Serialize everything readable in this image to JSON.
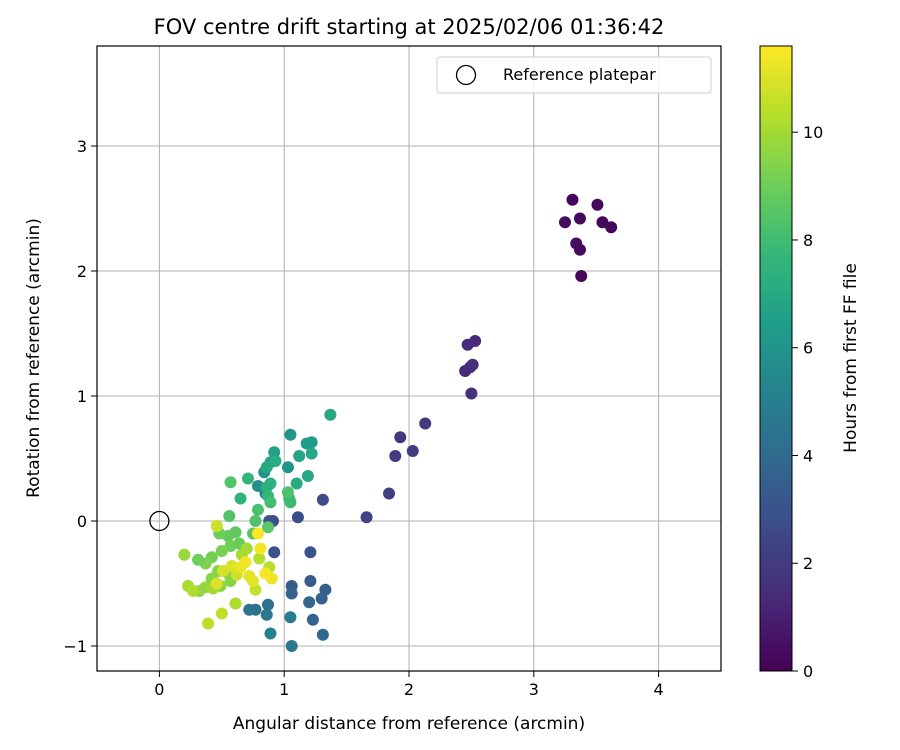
{
  "chart_data": {
    "type": "scatter",
    "title": "FOV centre drift starting at 2025/02/06 01:36:42",
    "xlabel": "Angular distance from reference (arcmin)",
    "ylabel": "Rotation from reference (arcmin)",
    "xlim": [
      -0.5,
      4.5
    ],
    "ylim": [
      -1.2,
      3.8
    ],
    "x_ticks": [
      0,
      1,
      2,
      3,
      4
    ],
    "x_tick_labels": [
      "0",
      "1",
      "2",
      "3",
      "4"
    ],
    "y_ticks": [
      -1,
      0,
      1,
      2,
      3
    ],
    "y_tick_labels": [
      "−1",
      "0",
      "1",
      "2",
      "3"
    ],
    "grid": true,
    "legend": {
      "placement": "top-right",
      "entries": [
        {
          "label": "Reference platepar",
          "marker": "open-circle"
        }
      ]
    },
    "reference_point": {
      "x": 0,
      "y": 0,
      "label": "Reference platepar"
    },
    "colorbar": {
      "label": "Hours from first FF file",
      "range": [
        0,
        11.6
      ],
      "ticks": [
        0,
        2,
        4,
        6,
        8,
        10
      ],
      "tick_labels": [
        "0",
        "2",
        "4",
        "6",
        "8",
        "10"
      ],
      "colormap": "viridis",
      "stops": [
        "#440154",
        "#482878",
        "#3e4989",
        "#31688e",
        "#26828e",
        "#1f9e89",
        "#35b779",
        "#6ece58",
        "#b5de2b",
        "#fde725"
      ]
    },
    "series": [
      {
        "points": [
          {
            "x": 3.31,
            "y": 2.57,
            "c": 0.2
          },
          {
            "x": 3.51,
            "y": 2.53,
            "c": 0.3
          },
          {
            "x": 3.37,
            "y": 2.42,
            "c": 0.3
          },
          {
            "x": 3.25,
            "y": 2.39,
            "c": 0.4
          },
          {
            "x": 3.55,
            "y": 2.39,
            "c": 0.2
          },
          {
            "x": 3.62,
            "y": 2.35,
            "c": 0.3
          },
          {
            "x": 3.34,
            "y": 2.22,
            "c": 0.4
          },
          {
            "x": 3.37,
            "y": 2.17,
            "c": 0.3
          },
          {
            "x": 3.38,
            "y": 1.96,
            "c": 0.2
          },
          {
            "x": 2.53,
            "y": 1.44,
            "c": 1.4
          },
          {
            "x": 2.47,
            "y": 1.41,
            "c": 1.5
          },
          {
            "x": 2.51,
            "y": 1.25,
            "c": 1.5
          },
          {
            "x": 2.49,
            "y": 1.23,
            "c": 1.6
          },
          {
            "x": 2.45,
            "y": 1.2,
            "c": 1.5
          },
          {
            "x": 2.5,
            "y": 1.02,
            "c": 1.6
          },
          {
            "x": 2.13,
            "y": 0.78,
            "c": 2.0
          },
          {
            "x": 1.93,
            "y": 0.67,
            "c": 2.0
          },
          {
            "x": 2.03,
            "y": 0.56,
            "c": 2.1
          },
          {
            "x": 1.89,
            "y": 0.52,
            "c": 2.1
          },
          {
            "x": 1.84,
            "y": 0.22,
            "c": 2.2
          },
          {
            "x": 1.31,
            "y": 0.17,
            "c": 2.6
          },
          {
            "x": 1.66,
            "y": 0.03,
            "c": 2.4
          },
          {
            "x": 1.11,
            "y": 0.03,
            "c": 2.8
          },
          {
            "x": 0.88,
            "y": 0.0,
            "c": 3.0
          },
          {
            "x": 0.91,
            "y": 0.0,
            "c": 2.9
          },
          {
            "x": 0.92,
            "y": -0.25,
            "c": 3.0
          },
          {
            "x": 1.21,
            "y": -0.25,
            "c": 3.0
          },
          {
            "x": 1.06,
            "y": -0.52,
            "c": 3.4
          },
          {
            "x": 1.21,
            "y": -0.48,
            "c": 3.4
          },
          {
            "x": 1.33,
            "y": -0.55,
            "c": 3.5
          },
          {
            "x": 1.06,
            "y": -0.58,
            "c": 3.6
          },
          {
            "x": 1.3,
            "y": -0.62,
            "c": 3.6
          },
          {
            "x": 1.2,
            "y": -0.65,
            "c": 3.8
          },
          {
            "x": 1.23,
            "y": -0.79,
            "c": 3.7
          },
          {
            "x": 1.31,
            "y": -0.91,
            "c": 3.9
          },
          {
            "x": 0.87,
            "y": -0.67,
            "c": 4.2
          },
          {
            "x": 0.77,
            "y": -0.71,
            "c": 4.4
          },
          {
            "x": 0.72,
            "y": -0.71,
            "c": 4.5
          },
          {
            "x": 0.86,
            "y": -0.75,
            "c": 4.6
          },
          {
            "x": 1.06,
            "y": -1.0,
            "c": 4.6
          },
          {
            "x": 1.05,
            "y": -0.77,
            "c": 4.8
          },
          {
            "x": 0.89,
            "y": -0.9,
            "c": 5.2
          },
          {
            "x": 0.85,
            "y": 0.22,
            "c": 5.4
          },
          {
            "x": 0.79,
            "y": 0.28,
            "c": 5.7
          },
          {
            "x": 0.84,
            "y": 0.39,
            "c": 5.9
          },
          {
            "x": 1.03,
            "y": 0.43,
            "c": 6.0
          },
          {
            "x": 1.05,
            "y": 0.69,
            "c": 6.1
          },
          {
            "x": 1.22,
            "y": 0.63,
            "c": 6.3
          },
          {
            "x": 1.18,
            "y": 0.62,
            "c": 6.4
          },
          {
            "x": 1.37,
            "y": 0.85,
            "c": 6.9
          },
          {
            "x": 0.92,
            "y": 0.55,
            "c": 6.6
          },
          {
            "x": 1.12,
            "y": 0.52,
            "c": 6.8
          },
          {
            "x": 1.22,
            "y": 0.54,
            "c": 6.9
          },
          {
            "x": 0.89,
            "y": 0.47,
            "c": 6.7
          },
          {
            "x": 0.86,
            "y": 0.43,
            "c": 7.0
          },
          {
            "x": 0.93,
            "y": 0.48,
            "c": 7.1
          },
          {
            "x": 1.19,
            "y": 0.36,
            "c": 6.9
          },
          {
            "x": 1.1,
            "y": 0.3,
            "c": 7.0
          },
          {
            "x": 0.89,
            "y": 0.3,
            "c": 7.4
          },
          {
            "x": 0.86,
            "y": 0.27,
            "c": 7.3
          },
          {
            "x": 0.65,
            "y": 0.18,
            "c": 7.5
          },
          {
            "x": 0.71,
            "y": 0.34,
            "c": 7.6
          },
          {
            "x": 0.87,
            "y": 0.2,
            "c": 7.6
          },
          {
            "x": 1.04,
            "y": 0.18,
            "c": 7.8
          },
          {
            "x": 1.05,
            "y": 0.15,
            "c": 7.9
          },
          {
            "x": 0.89,
            "y": 0.15,
            "c": 8.0
          },
          {
            "x": 0.79,
            "y": 0.09,
            "c": 8.2
          },
          {
            "x": 1.03,
            "y": 0.23,
            "c": 8.3
          },
          {
            "x": 0.57,
            "y": 0.31,
            "c": 8.4
          },
          {
            "x": 0.77,
            "y": 0.0,
            "c": 8.3
          },
          {
            "x": 0.56,
            "y": 0.04,
            "c": 8.4
          },
          {
            "x": 0.87,
            "y": -0.05,
            "c": 8.6
          },
          {
            "x": 0.75,
            "y": -0.1,
            "c": 8.5
          },
          {
            "x": 0.61,
            "y": -0.09,
            "c": 8.7
          },
          {
            "x": 0.55,
            "y": -0.12,
            "c": 8.8
          },
          {
            "x": 0.64,
            "y": -0.18,
            "c": 8.9
          },
          {
            "x": 0.48,
            "y": -0.1,
            "c": 9.0
          },
          {
            "x": 0.57,
            "y": -0.2,
            "c": 9.0
          },
          {
            "x": 0.5,
            "y": -0.24,
            "c": 9.2
          },
          {
            "x": 0.42,
            "y": -0.29,
            "c": 9.1
          },
          {
            "x": 0.37,
            "y": -0.34,
            "c": 9.3
          },
          {
            "x": 0.31,
            "y": -0.31,
            "c": 9.0
          },
          {
            "x": 0.2,
            "y": -0.27,
            "c": 9.8
          },
          {
            "x": 0.47,
            "y": -0.4,
            "c": 9.4
          },
          {
            "x": 0.56,
            "y": -0.43,
            "c": 9.4
          },
          {
            "x": 0.42,
            "y": -0.46,
            "c": 9.5
          },
          {
            "x": 0.49,
            "y": -0.52,
            "c": 9.6
          },
          {
            "x": 0.57,
            "y": -0.48,
            "c": 9.5
          },
          {
            "x": 0.37,
            "y": -0.53,
            "c": 9.7
          },
          {
            "x": 0.32,
            "y": -0.56,
            "c": 9.7
          },
          {
            "x": 0.23,
            "y": -0.52,
            "c": 10.1
          },
          {
            "x": 0.27,
            "y": -0.56,
            "c": 10.2
          },
          {
            "x": 0.43,
            "y": -0.54,
            "c": 10.0
          },
          {
            "x": 0.61,
            "y": -0.66,
            "c": 10.2
          },
          {
            "x": 0.39,
            "y": -0.82,
            "c": 10.4
          },
          {
            "x": 0.5,
            "y": -0.74,
            "c": 10.5
          },
          {
            "x": 0.7,
            "y": -0.22,
            "c": 10.0
          },
          {
            "x": 0.66,
            "y": -0.27,
            "c": 10.1
          },
          {
            "x": 0.8,
            "y": -0.3,
            "c": 10.3
          },
          {
            "x": 0.88,
            "y": -0.37,
            "c": 10.4
          },
          {
            "x": 0.77,
            "y": -0.55,
            "c": 10.6
          },
          {
            "x": 0.62,
            "y": -0.43,
            "c": 10.8
          },
          {
            "x": 0.51,
            "y": -0.4,
            "c": 10.9
          },
          {
            "x": 0.46,
            "y": -0.04,
            "c": 10.7
          },
          {
            "x": 0.58,
            "y": -0.36,
            "c": 11.0
          },
          {
            "x": 0.72,
            "y": -0.44,
            "c": 11.2
          },
          {
            "x": 0.9,
            "y": -0.46,
            "c": 11.3
          },
          {
            "x": 0.81,
            "y": -0.22,
            "c": 11.4
          },
          {
            "x": 0.85,
            "y": -0.42,
            "c": 11.5
          },
          {
            "x": 0.75,
            "y": -0.48,
            "c": 11.1
          },
          {
            "x": 0.65,
            "y": -0.37,
            "c": 11.3
          },
          {
            "x": 0.46,
            "y": -0.5,
            "c": 11.0
          },
          {
            "x": 0.79,
            "y": -0.1,
            "c": 11.6
          },
          {
            "x": 0.69,
            "y": -0.33,
            "c": 11.4
          }
        ]
      }
    ]
  }
}
